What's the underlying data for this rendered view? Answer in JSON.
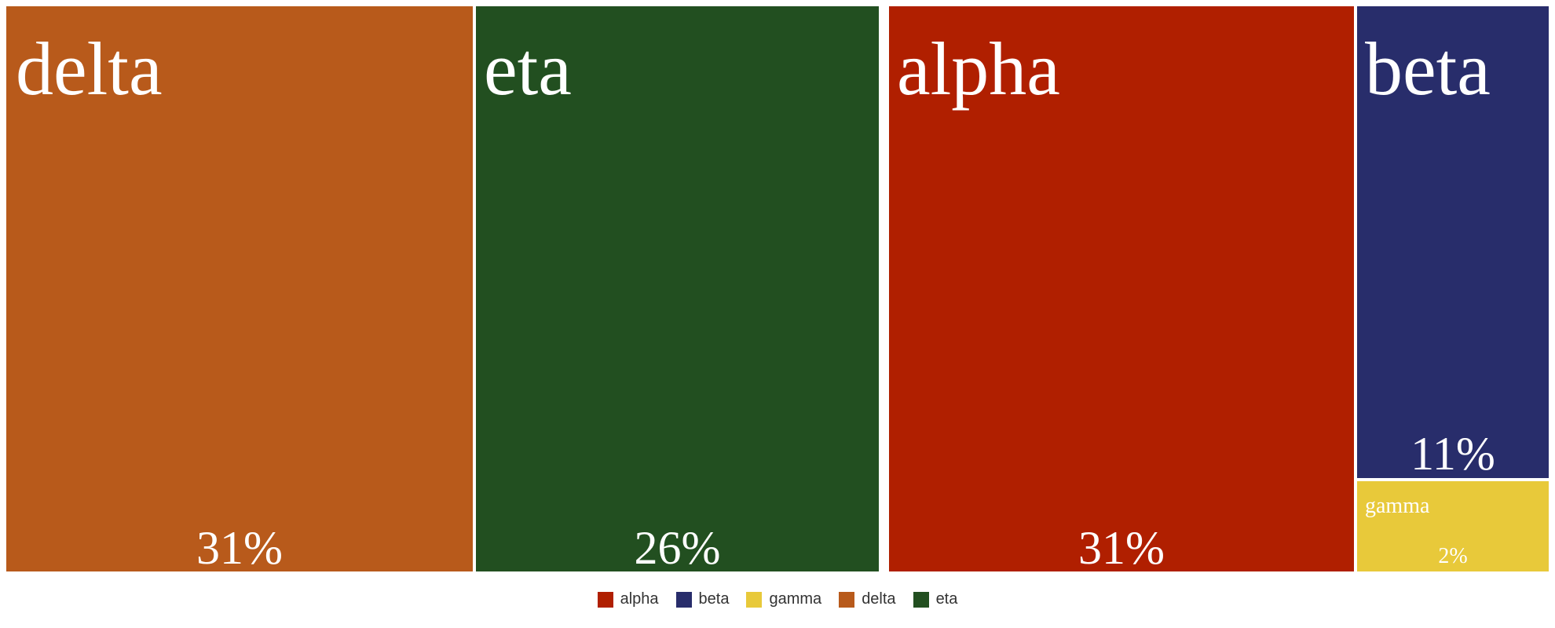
{
  "chart_data": {
    "type": "treemap",
    "items": [
      {
        "name": "delta",
        "percent": "31%",
        "value": 31,
        "color": "#b85a1b"
      },
      {
        "name": "eta",
        "percent": "26%",
        "value": 26,
        "color": "#224f20"
      },
      {
        "name": "alpha",
        "percent": "31%",
        "value": 31,
        "color": "#b01f00"
      },
      {
        "name": "beta",
        "percent": "11%",
        "value": 11,
        "color": "#282d6b"
      },
      {
        "name": "gamma",
        "percent": "2%",
        "value": 2,
        "color": "#e8c93a"
      }
    ],
    "legend": [
      {
        "name": "alpha",
        "color": "#b01f00"
      },
      {
        "name": "beta",
        "color": "#282d6b"
      },
      {
        "name": "gamma",
        "color": "#e8c93a"
      },
      {
        "name": "delta",
        "color": "#b85a1b"
      },
      {
        "name": "eta",
        "color": "#224f20"
      }
    ],
    "legend_position": "bottom"
  }
}
